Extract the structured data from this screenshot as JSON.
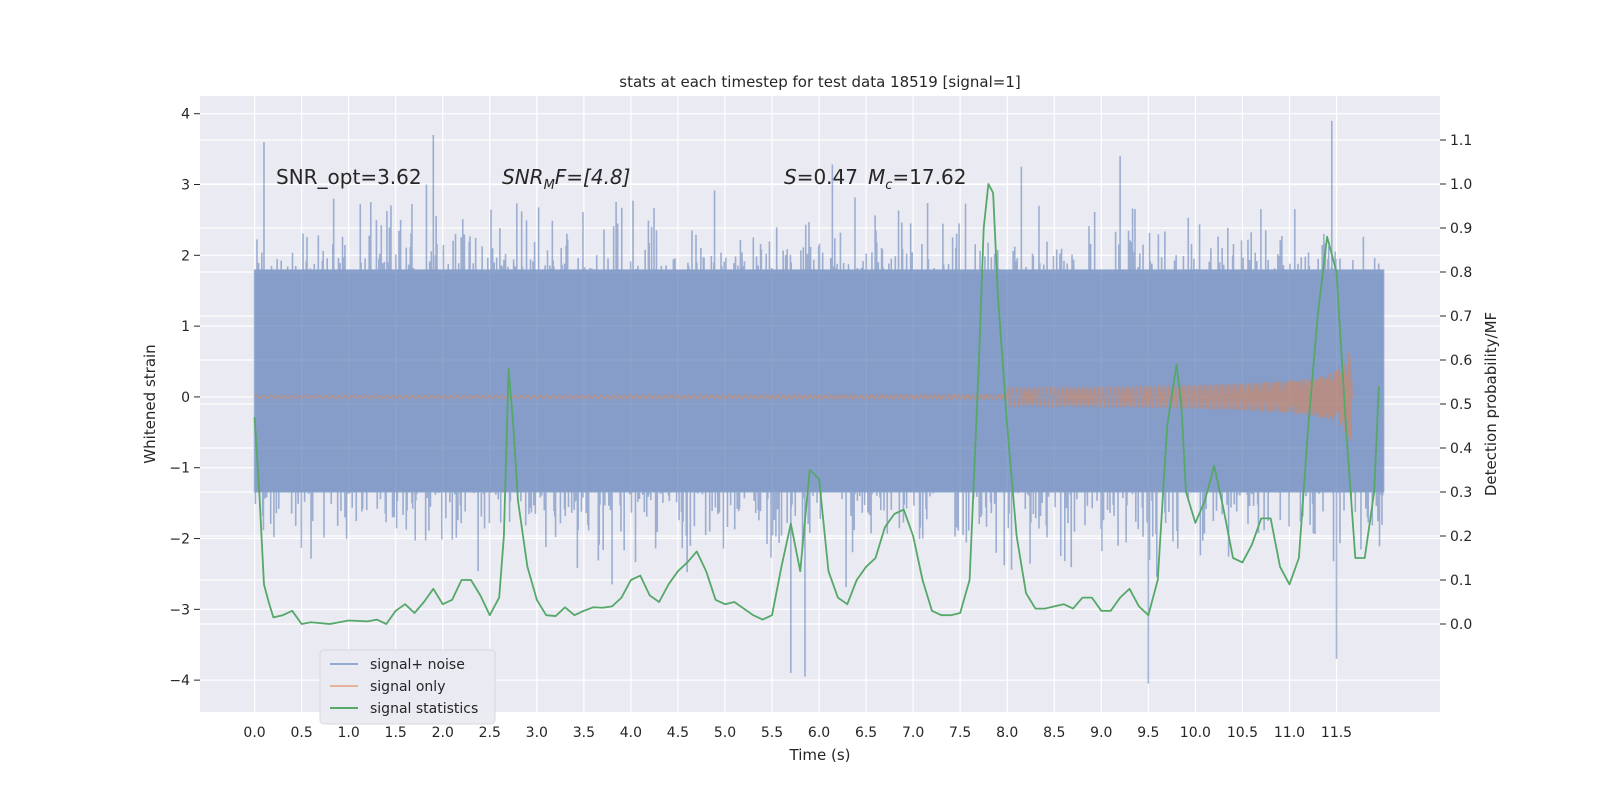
{
  "chart_data": {
    "type": "line",
    "title": "stats at each timestep for test data 18519 [signal=1]",
    "xlabel": "Time (s)",
    "ylabel_left": "Whitened strain",
    "ylabel_right": "Detection probability/MF",
    "xlim": [
      -0.58,
      12.6
    ],
    "ylim_left": [
      -4.45,
      4.25
    ],
    "ylim_right": [
      -0.2,
      1.2
    ],
    "x_ticks": [
      "0.0",
      "0.5",
      "1.0",
      "1.5",
      "2.0",
      "2.5",
      "3.0",
      "3.5",
      "4.0",
      "4.5",
      "5.0",
      "5.5",
      "6.0",
      "6.5",
      "7.0",
      "7.5",
      "8.0",
      "8.5",
      "9.0",
      "9.5",
      "10.0",
      "10.5",
      "11.0",
      "11.5"
    ],
    "y_ticks_left": [
      "4",
      "3",
      "2",
      "1",
      "0",
      "−1",
      "−2",
      "−3",
      "−4"
    ],
    "y_ticks_right": [
      "1.1",
      "1.0",
      "0.9",
      "0.8",
      "0.7",
      "0.6",
      "0.5",
      "0.4",
      "0.3",
      "0.2",
      "0.1",
      "0.0"
    ],
    "grid": true,
    "legend_position": "lower-left",
    "annotations": {
      "snr_opt": "SNR_opt=3.62",
      "snr_mf_main": "SNR",
      "snr_mf_sub": "M",
      "snr_mf_rest": "F=[4.8]",
      "s_main": "S",
      "s_rest": "=0.47",
      "mc_main": "M",
      "mc_sub": "c",
      "mc_rest": "=17.62"
    },
    "series": [
      {
        "name": "signal+ noise",
        "color": "#4c72b0",
        "x_range": [
          0.0,
          12.0
        ],
        "samples": 1400,
        "core_band": [
          -1.35,
          1.8
        ],
        "peaks": [
          {
            "x": 0.1,
            "y": 3.6
          },
          {
            "x": 1.9,
            "y": 3.7
          },
          {
            "x": 11.45,
            "y": 3.9
          },
          {
            "x": 11.5,
            "y": -3.7
          },
          {
            "x": 9.5,
            "y": -4.05
          },
          {
            "x": 5.85,
            "y": -3.95
          },
          {
            "x": 5.7,
            "y": -3.9
          },
          {
            "x": 9.2,
            "y": 3.4
          },
          {
            "x": 8.15,
            "y": 3.25
          }
        ]
      },
      {
        "name": "signal only",
        "color": "#dd8452",
        "x_range": [
          0.0,
          11.67
        ],
        "amplitude_end": 0.8
      },
      {
        "name": "signal statistics",
        "color": "#55a868",
        "x": [
          0.0,
          0.05,
          0.1,
          0.15,
          0.2,
          0.3,
          0.4,
          0.5,
          0.6,
          0.8,
          1.0,
          1.2,
          1.3,
          1.4,
          1.5,
          1.6,
          1.7,
          1.8,
          1.9,
          2.0,
          2.1,
          2.2,
          2.3,
          2.4,
          2.5,
          2.6,
          2.65,
          2.7,
          2.75,
          2.8,
          2.9,
          3.0,
          3.1,
          3.2,
          3.3,
          3.4,
          3.5,
          3.6,
          3.7,
          3.8,
          3.9,
          4.0,
          4.1,
          4.2,
          4.3,
          4.4,
          4.5,
          4.6,
          4.7,
          4.8,
          4.9,
          5.0,
          5.1,
          5.2,
          5.3,
          5.4,
          5.5,
          5.6,
          5.7,
          5.8,
          5.9,
          6.0,
          6.1,
          6.2,
          6.3,
          6.4,
          6.5,
          6.6,
          6.7,
          6.8,
          6.9,
          7.0,
          7.1,
          7.2,
          7.3,
          7.4,
          7.5,
          7.6,
          7.7,
          7.75,
          7.8,
          7.85,
          7.9,
          8.0,
          8.1,
          8.2,
          8.3,
          8.4,
          8.5,
          8.6,
          8.7,
          8.8,
          8.9,
          9.0,
          9.1,
          9.2,
          9.3,
          9.4,
          9.5,
          9.6,
          9.7,
          9.8,
          9.85,
          9.9,
          10.0,
          10.1,
          10.2,
          10.3,
          10.4,
          10.5,
          10.6,
          10.7,
          10.8,
          10.9,
          11.0,
          11.1,
          11.2,
          11.3,
          11.4,
          11.5,
          11.6,
          11.7,
          11.8,
          11.9,
          11.95
        ],
        "y": [
          0.47,
          0.3,
          0.09,
          0.05,
          0.015,
          0.02,
          0.03,
          0.0,
          0.004,
          0.0,
          0.008,
          0.006,
          0.01,
          0.0,
          0.03,
          0.045,
          0.025,
          0.05,
          0.08,
          0.045,
          0.055,
          0.1,
          0.1,
          0.065,
          0.02,
          0.06,
          0.2,
          0.58,
          0.45,
          0.28,
          0.13,
          0.055,
          0.02,
          0.018,
          0.038,
          0.02,
          0.03,
          0.038,
          0.037,
          0.04,
          0.06,
          0.1,
          0.11,
          0.065,
          0.05,
          0.09,
          0.12,
          0.14,
          0.165,
          0.12,
          0.055,
          0.045,
          0.05,
          0.035,
          0.02,
          0.01,
          0.02,
          0.13,
          0.228,
          0.12,
          0.35,
          0.33,
          0.12,
          0.06,
          0.045,
          0.1,
          0.13,
          0.15,
          0.22,
          0.25,
          0.26,
          0.2,
          0.1,
          0.03,
          0.02,
          0.02,
          0.025,
          0.1,
          0.6,
          0.9,
          1.0,
          0.98,
          0.75,
          0.45,
          0.2,
          0.07,
          0.035,
          0.035,
          0.04,
          0.045,
          0.035,
          0.06,
          0.06,
          0.03,
          0.03,
          0.06,
          0.08,
          0.04,
          0.02,
          0.1,
          0.45,
          0.59,
          0.5,
          0.3,
          0.23,
          0.28,
          0.36,
          0.26,
          0.15,
          0.14,
          0.18,
          0.24,
          0.24,
          0.13,
          0.09,
          0.15,
          0.45,
          0.7,
          0.88,
          0.8,
          0.45,
          0.15,
          0.15,
          0.3,
          0.54
        ]
      }
    ]
  }
}
